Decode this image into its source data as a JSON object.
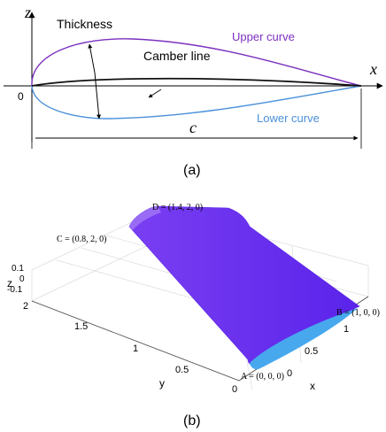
{
  "panel_a": {
    "z_axis_label": "z",
    "x_axis_label": "x",
    "origin_label": "0",
    "thickness_label": "Thickness",
    "camber_label": "Camber line",
    "upper_label": "Upper curve",
    "lower_label": "Lower curve",
    "chord_label": "c",
    "caption": "(a)",
    "colors": {
      "upper": "#7b2fbf",
      "lower": "#4a90d9",
      "camber": "#111111"
    }
  },
  "panel_b": {
    "caption": "(b)",
    "axis_labels": {
      "x": "x",
      "y": "y",
      "z": "z"
    },
    "z_ticks": [
      "0.1",
      "0",
      "-0.1"
    ],
    "y_ticks": [
      "2",
      "1.5",
      "1",
      "0.5",
      "0"
    ],
    "x_ticks": [
      "0",
      "0.5",
      "1"
    ],
    "points": {
      "A": "A = (0, 0, 0)",
      "B": "B = (1, 0, 0)",
      "C": "C = (0.8, 2, 0)",
      "D": "D = (1.4, 2, 0)"
    },
    "colors": {
      "surface": "#6a2ff0",
      "surface_edge": "#8a55f5",
      "section": "#48a8ee"
    }
  }
}
